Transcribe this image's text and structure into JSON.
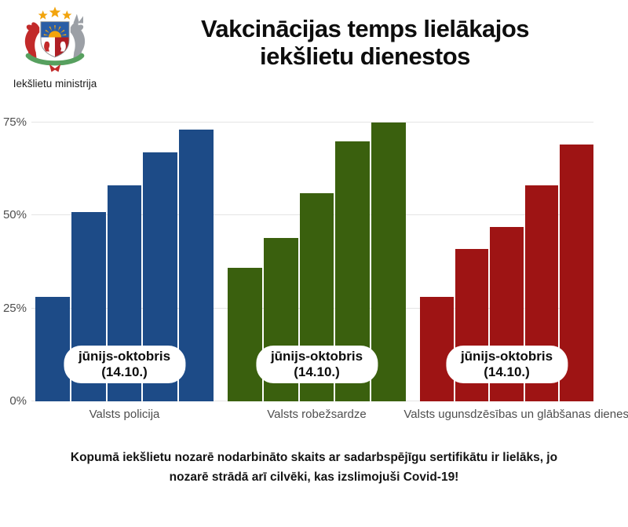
{
  "header": {
    "logo_caption": "Iekšlietu ministrija",
    "title_line1": "Vakcinācijas temps lielākajos",
    "title_line2": "iekšlietu dienestos"
  },
  "annotation": {
    "line1": "jūnijs-oktobris",
    "line2": "(14.10.)"
  },
  "chart_data": {
    "type": "bar",
    "title": "Vakcinācijas temps lielākajos iekšlietu dienestos",
    "xlabel": "",
    "ylabel": "",
    "ylim": [
      0,
      80
    ],
    "grid": true,
    "legend_position": "none",
    "unit": "%",
    "bar_annotation": "jūnijs-oktobris (14.10.)",
    "yticks": [
      {
        "label": "0%",
        "value": 0
      },
      {
        "label": "25%",
        "value": 25
      },
      {
        "label": "50%",
        "value": 50
      },
      {
        "label": "75%",
        "value": 75
      }
    ],
    "groups": [
      {
        "category": "Valsts policija",
        "color": "#1d4b87",
        "values": [
          28,
          51,
          58,
          67,
          73
        ]
      },
      {
        "category": "Valsts robežsardze",
        "color": "#3a600e",
        "values": [
          36,
          44,
          56,
          70,
          75
        ]
      },
      {
        "category": "Valsts ugunsdzēsības un glābšanas dienests",
        "color": "#9e1414",
        "values": [
          28,
          41,
          47,
          58,
          69
        ]
      }
    ]
  },
  "footer": {
    "line1": "Kopumā iekšlietu nozarē nodarbināto skaits ar sadarbspējīgu sertifikātu ir lielāks, jo",
    "line2": "nozarē strādā arī cilvēki, kas izslimojuši Covid-19!"
  },
  "colors": {
    "police_blue": "#1d4b87",
    "border_guard_green": "#3a600e",
    "fire_rescue_red": "#9e1414",
    "gridline": "#e4e4e4",
    "axis_text": "#4e4e4e",
    "background": "#ffffff",
    "title_text": "#0d0d0d"
  }
}
